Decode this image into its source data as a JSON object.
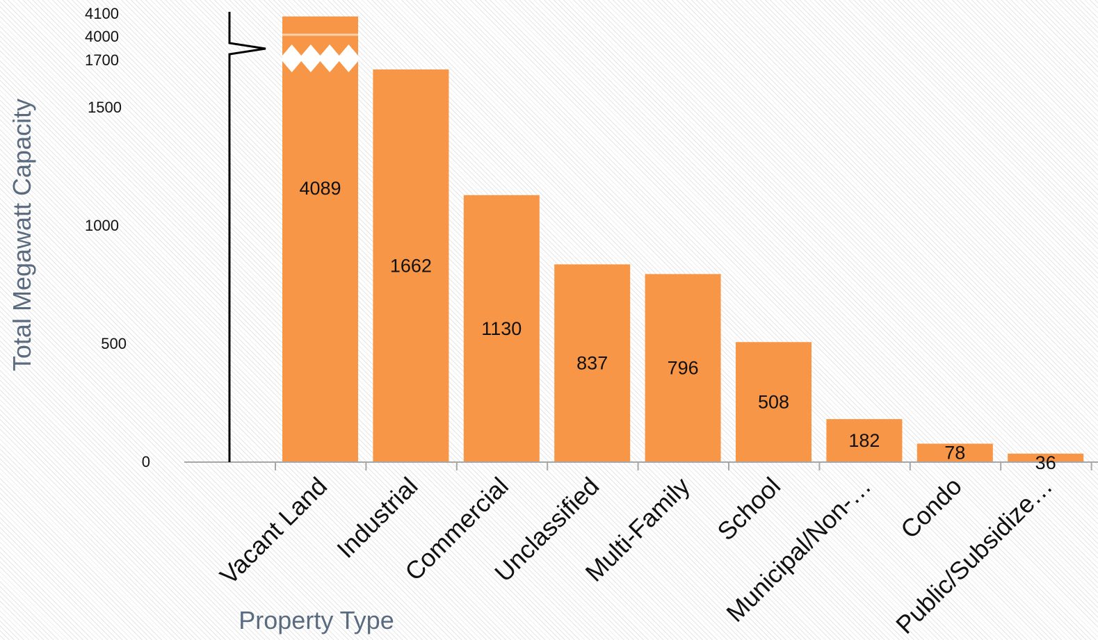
{
  "chart_data": {
    "type": "bar",
    "categories": [
      "Vacant Land",
      "Industrial",
      "Commercial",
      "Unclassified",
      "Multi-Family",
      "School",
      "Municipal/Non-…",
      "Condo",
      "Public/Subsidize…"
    ],
    "values": [
      4089,
      1662,
      1130,
      837,
      796,
      508,
      182,
      78,
      36
    ],
    "data_labels": [
      "4089",
      "1662",
      "1130",
      "837",
      "796",
      "508",
      "182",
      "78",
      "36"
    ],
    "xlabel": "Property Type",
    "ylabel": "Total Megawatt Capacity",
    "ylim": [
      0,
      4100
    ],
    "axis_break": [
      1700,
      4000
    ],
    "y_ticks": [
      0,
      500,
      1000,
      1500,
      1700,
      4000,
      4100
    ],
    "y_tick_labels": [
      "0",
      "500",
      "1000",
      "1500",
      "1700",
      "4000",
      "4100"
    ],
    "grid": false,
    "legend": "none",
    "bar_color": "#f79646",
    "axis_color": "#a6a6a6",
    "break_marker_color": "#000000"
  }
}
